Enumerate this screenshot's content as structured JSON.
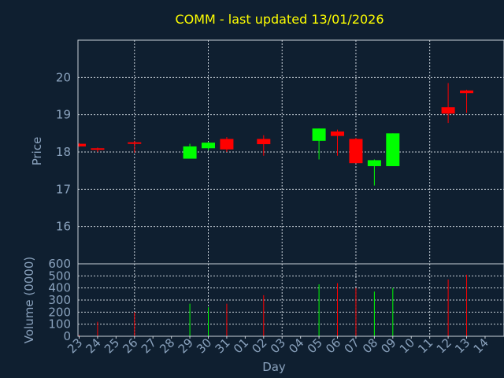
{
  "colors": {
    "background": "#0f1f30",
    "grid": "#c8d0d8",
    "frame": "#c8d0d8",
    "title": "#ffff00",
    "tick_label": "#8aa2bd",
    "axis_label": "#8aa2bd",
    "up": "#00ff00",
    "down": "#ff0000"
  },
  "chart_data": {
    "type": "candlestick",
    "title": "COMM - last updated 13/01/2026",
    "xlabel": "Day",
    "price": {
      "ylabel": "Price",
      "ylim": [
        15.0,
        21.0
      ],
      "yticks": [
        16,
        17,
        18,
        19,
        20
      ],
      "grid": true
    },
    "volume": {
      "ylabel": "Volume (0000)",
      "ylim": [
        0,
        600
      ],
      "yticks": [
        0,
        100,
        200,
        300,
        400,
        500,
        600
      ],
      "grid": true
    },
    "days": [
      "23",
      "24",
      "25",
      "26",
      "27",
      "28",
      "29",
      "30",
      "31",
      "01",
      "02",
      "03",
      "04",
      "05",
      "06",
      "07",
      "08",
      "09",
      "10",
      "11",
      "12",
      "13",
      "14"
    ],
    "candles": [
      {
        "day": "23",
        "open": 18.22,
        "high": 18.24,
        "low": 18.14,
        "close": 18.15,
        "volume": 10
      },
      {
        "day": "24",
        "open": 18.1,
        "high": 18.12,
        "low": 18.0,
        "close": 18.06,
        "volume": 120
      },
      {
        "day": "26",
        "open": 18.26,
        "high": 18.3,
        "low": 17.98,
        "close": 18.24,
        "volume": 200
      },
      {
        "day": "29",
        "open": 17.82,
        "high": 18.22,
        "low": 17.82,
        "close": 18.15,
        "volume": 270
      },
      {
        "day": "30",
        "open": 18.1,
        "high": 18.27,
        "low": 18.05,
        "close": 18.25,
        "volume": 240
      },
      {
        "day": "31",
        "open": 18.35,
        "high": 18.4,
        "low": 18.0,
        "close": 18.07,
        "volume": 270
      },
      {
        "day": "02",
        "open": 18.35,
        "high": 18.45,
        "low": 17.9,
        "close": 18.21,
        "volume": 340
      },
      {
        "day": "05",
        "open": 18.3,
        "high": 18.63,
        "low": 17.8,
        "close": 18.63,
        "volume": 430
      },
      {
        "day": "06",
        "open": 18.55,
        "high": 18.6,
        "low": 17.9,
        "close": 18.43,
        "volume": 440
      },
      {
        "day": "07",
        "open": 18.35,
        "high": 18.38,
        "low": 17.7,
        "close": 17.7,
        "volume": 400
      },
      {
        "day": "08",
        "open": 17.62,
        "high": 17.8,
        "low": 17.1,
        "close": 17.78,
        "volume": 370
      },
      {
        "day": "09",
        "open": 17.62,
        "high": 18.5,
        "low": 17.62,
        "close": 18.5,
        "volume": 400
      },
      {
        "day": "12",
        "open": 19.2,
        "high": 19.85,
        "low": 18.78,
        "close": 19.03,
        "volume": 470
      },
      {
        "day": "13",
        "open": 19.65,
        "high": 19.67,
        "low": 19.05,
        "close": 19.58,
        "volume": 510
      }
    ]
  }
}
